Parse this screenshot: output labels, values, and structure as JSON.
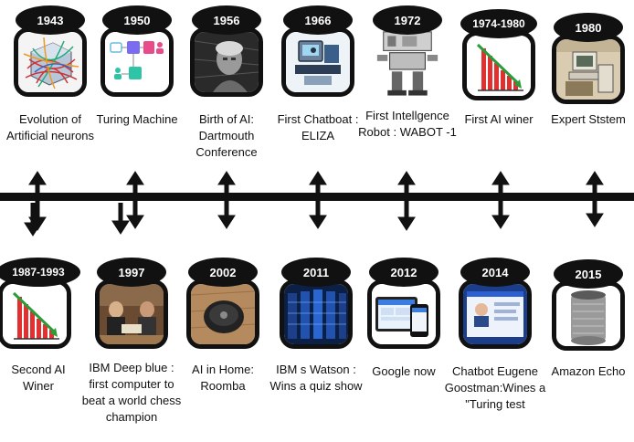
{
  "top": [
    {
      "year": "1943",
      "caption": "Evolution of Artificial neurons",
      "icon": "neuron-network-icon"
    },
    {
      "year": "1950",
      "caption": "Turing Machine",
      "icon": "turing-diagram-icon"
    },
    {
      "year": "1956",
      "caption": "Birth of AI: Dartmouth Conference",
      "icon": "portrait-photo-icon"
    },
    {
      "year": "1966",
      "caption": "First Chatboat : ELIZA",
      "icon": "chatbot-computer-icon"
    },
    {
      "year": "1972",
      "caption": "First Intellgence Robot : WABOT -1",
      "icon": "robot-icon"
    },
    {
      "year": "1974-1980",
      "caption": "First AI winer",
      "icon": "declining-chart-icon"
    },
    {
      "year": "1980",
      "caption": "Expert Ststem",
      "icon": "computer-terminal-icon"
    }
  ],
  "bottom": [
    {
      "year": "1987-1993",
      "caption": "Second AI Winer",
      "icon": "declining-chart-icon"
    },
    {
      "year": "1997",
      "caption": "IBM Deep blue : first computer to beat a world chess champion",
      "icon": "chess-match-icon"
    },
    {
      "year": "2002",
      "caption": "AI in Home: Roomba",
      "icon": "robot-vacuum-icon"
    },
    {
      "year": "2011",
      "caption": "IBM s Watson : Wins a quiz show",
      "icon": "server-racks-icon"
    },
    {
      "year": "2012",
      "caption": "Google now",
      "icon": "phone-tablet-icon"
    },
    {
      "year": "2014",
      "caption": "Chatbot Eugene Goostman:Wines a \"Turing test",
      "icon": "chat-window-icon"
    },
    {
      "year": "2015",
      "caption": "Amazon Echo",
      "icon": "smart-speaker-icon"
    }
  ]
}
